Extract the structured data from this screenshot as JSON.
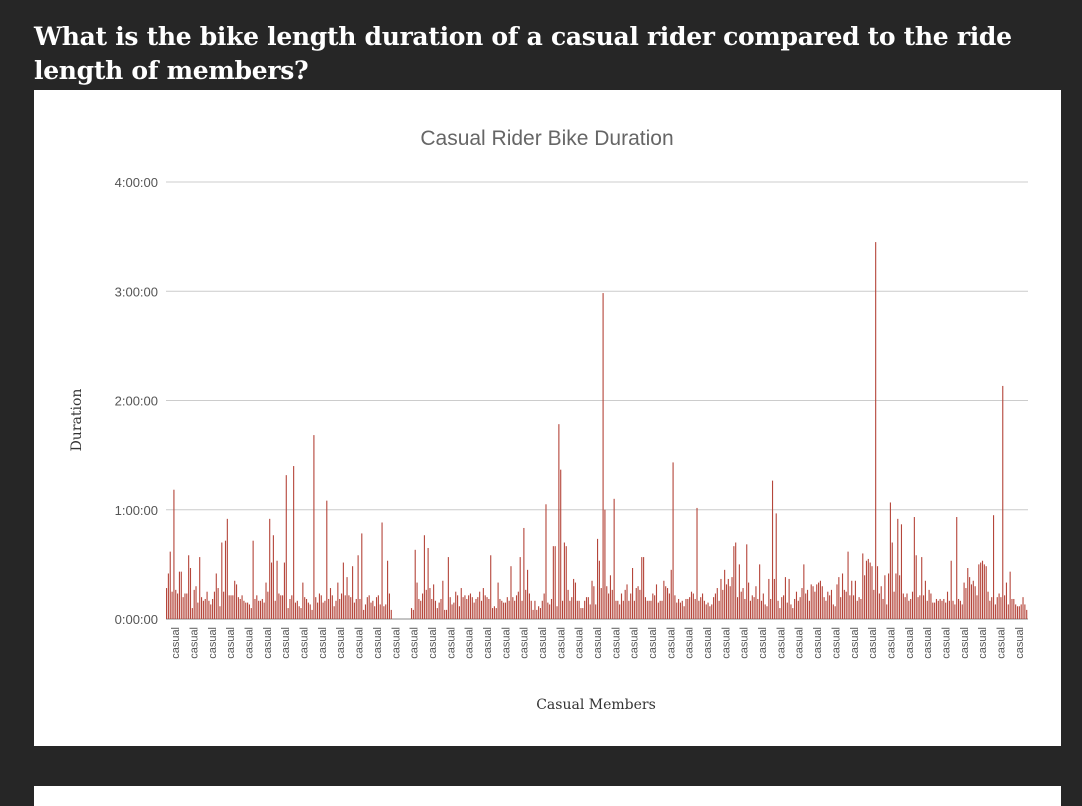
{
  "page": {
    "question": "What is the bike length duration of a casual rider compared to the ride length of members?"
  },
  "colors": {
    "background": "#262626",
    "card": "#ffffff",
    "bar": "#b5463b",
    "grid": "#cccccc"
  },
  "chart_data": {
    "type": "bar",
    "title": "Casual Rider Bike Duration",
    "xlabel": "Casual Members",
    "ylabel": "Duration",
    "y_unit": "minutes",
    "yticks": [
      {
        "label": "0:00:00",
        "value": 0
      },
      {
        "label": "1:00:00",
        "value": 60
      },
      {
        "label": "2:00:00",
        "value": 120
      },
      {
        "label": "3:00:00",
        "value": 180
      },
      {
        "label": "4:00:00",
        "value": 240
      }
    ],
    "ylim": [
      0,
      240
    ],
    "grid": true,
    "category_label": "casual",
    "category_label_count": 47,
    "values": [
      17,
      25,
      37,
      15,
      71,
      16,
      14,
      26,
      26,
      12,
      14,
      14,
      35,
      28,
      6,
      16,
      18,
      9,
      34,
      12,
      10,
      11,
      15,
      10,
      8,
      11,
      15,
      25,
      17,
      7,
      42,
      15,
      43,
      55,
      13,
      13,
      13,
      21,
      19,
      12,
      11,
      13,
      10,
      9,
      9,
      8,
      6,
      43,
      11,
      13,
      10,
      10,
      11,
      9,
      20,
      15,
      55,
      31,
      46,
      10,
      32,
      14,
      13,
      13,
      31,
      79,
      6,
      11,
      13,
      84,
      9,
      10,
      7,
      6,
      20,
      12,
      11,
      9,
      8,
      5,
      101,
      12,
      9,
      14,
      13,
      9,
      10,
      65,
      11,
      17,
      13,
      7,
      10,
      20,
      11,
      14,
      31,
      13,
      23,
      13,
      12,
      29,
      9,
      11,
      35,
      11,
      47,
      5,
      8,
      12,
      13,
      9,
      10,
      7,
      12,
      13,
      8,
      53,
      7,
      8,
      32,
      14,
      5,
      0,
      0,
      0,
      0,
      0,
      0,
      0,
      0,
      0,
      0,
      6,
      5,
      38,
      20,
      11,
      10,
      14,
      46,
      16,
      39,
      17,
      11,
      19,
      10,
      6,
      9,
      11,
      21,
      5,
      5,
      34,
      12,
      8,
      9,
      15,
      13,
      7,
      17,
      12,
      13,
      11,
      13,
      14,
      12,
      9,
      11,
      12,
      15,
      10,
      17,
      13,
      12,
      11,
      35,
      6,
      7,
      6,
      20,
      11,
      10,
      9,
      9,
      12,
      10,
      29,
      12,
      10,
      13,
      15,
      34,
      10,
      50,
      16,
      27,
      14,
      10,
      5,
      10,
      5,
      7,
      6,
      10,
      14,
      63,
      9,
      8,
      11,
      40,
      40,
      7,
      107,
      82,
      10,
      42,
      40,
      16,
      10,
      12,
      22,
      20,
      10,
      10,
      6,
      6,
      10,
      12,
      12,
      8,
      21,
      18,
      8,
      44,
      32,
      17,
      179,
      60,
      18,
      14,
      24,
      16,
      66,
      10,
      10,
      8,
      14,
      10,
      16,
      19,
      10,
      14,
      28,
      10,
      17,
      18,
      16,
      34,
      34,
      12,
      10,
      10,
      10,
      14,
      13,
      19,
      9,
      10,
      10,
      21,
      18,
      17,
      14,
      27,
      86,
      13,
      9,
      11,
      9,
      10,
      7,
      11,
      11,
      12,
      15,
      14,
      11,
      61,
      10,
      12,
      14,
      10,
      8,
      9,
      7,
      8,
      12,
      14,
      17,
      10,
      22,
      16,
      27,
      19,
      22,
      18,
      23,
      40,
      42,
      12,
      30,
      15,
      17,
      11,
      41,
      20,
      10,
      13,
      12,
      18,
      11,
      30,
      10,
      14,
      8,
      7,
      22,
      11,
      76,
      22,
      58,
      10,
      6,
      12,
      13,
      23,
      9,
      22,
      8,
      6,
      11,
      15,
      10,
      12,
      17,
      30,
      14,
      16,
      10,
      19,
      18,
      15,
      19,
      20,
      21,
      18,
      12,
      10,
      15,
      13,
      16,
      8,
      7,
      19,
      23,
      12,
      25,
      16,
      15,
      37,
      13,
      21,
      13,
      21,
      10,
      12,
      11,
      36,
      24,
      32,
      33,
      31,
      29,
      16,
      207,
      29,
      14,
      18,
      11,
      24,
      8,
      25,
      64,
      42,
      15,
      25,
      55,
      24,
      52,
      14,
      12,
      14,
      10,
      11,
      15,
      56,
      35,
      12,
      13,
      34,
      13,
      21,
      10,
      16,
      14,
      9,
      9,
      11,
      10,
      11,
      10,
      11,
      9,
      15,
      10,
      32,
      10,
      8,
      56,
      11,
      10,
      8,
      20,
      17,
      28,
      23,
      19,
      21,
      18,
      13,
      30,
      31,
      32,
      30,
      29,
      15,
      10,
      12,
      57,
      8,
      12,
      14,
      12,
      128,
      13,
      20,
      8,
      26,
      11,
      11,
      8,
      7,
      7,
      8,
      12,
      8,
      5
    ]
  }
}
